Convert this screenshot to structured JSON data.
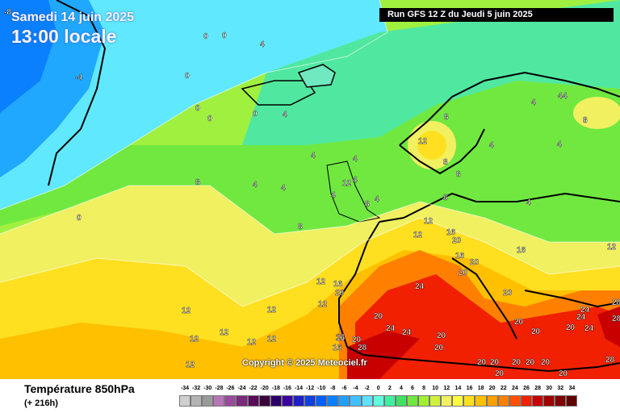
{
  "header": {
    "date": "Samedi 14 juin 2025",
    "local_time": "13:00 locale",
    "run_info": "Run GFS 12 Z du Jeudi 5 juin 2025"
  },
  "copyright": "Copyright © 2025 Meteociel.fr",
  "footer": {
    "parameter": "Température 850hPa",
    "lead_time": "(+ 216h)"
  },
  "legend": {
    "labels": [
      "-34",
      "-32",
      "-30",
      "-28",
      "-26",
      "-24",
      "-22",
      "-20",
      "-18",
      "-16",
      "-14",
      "-12",
      "-10",
      "-8",
      "-6",
      "-4",
      "-2",
      "0",
      "2",
      "4",
      "6",
      "8",
      "10",
      "12",
      "14",
      "16",
      "18",
      "20",
      "22",
      "24",
      "26",
      "28",
      "30",
      "32",
      "34"
    ],
    "colors": [
      "#cfcfcf",
      "#b3b3b3",
      "#9a9a9a",
      "#b874b8",
      "#9a4a9a",
      "#7a2a7a",
      "#5a0a5a",
      "#3a003a",
      "#2a0068",
      "#3a00a0",
      "#2020c8",
      "#1040e0",
      "#0060ff",
      "#0a80ff",
      "#20a0ff",
      "#40c0ff",
      "#60e0ff",
      "#60ffe0",
      "#40f0a0",
      "#40e060",
      "#70e840",
      "#a0f030",
      "#d0f040",
      "#f0f060",
      "#ffff40",
      "#ffe020",
      "#ffc000",
      "#ffa000",
      "#ff8000",
      "#ff5000",
      "#f02000",
      "#c80000",
      "#a00000",
      "#800000",
      "#600000"
    ]
  },
  "map_labels": [
    {
      "text": "-8"
    },
    {
      "text": "0"
    },
    {
      "text": "-4"
    },
    {
      "text": "0"
    },
    {
      "text": "0"
    },
    {
      "text": "4"
    },
    {
      "text": "0"
    },
    {
      "text": "4"
    },
    {
      "text": "0"
    },
    {
      "text": "0"
    },
    {
      "text": "0"
    },
    {
      "text": "0"
    },
    {
      "text": "4"
    },
    {
      "text": "4"
    },
    {
      "text": "4"
    },
    {
      "text": "4"
    },
    {
      "text": "8"
    },
    {
      "text": "8"
    },
    {
      "text": "4"
    },
    {
      "text": "12"
    },
    {
      "text": "8"
    },
    {
      "text": "4"
    },
    {
      "text": "4"
    },
    {
      "text": "4"
    },
    {
      "text": "4"
    },
    {
      "text": "4"
    },
    {
      "text": "4"
    },
    {
      "text": "8"
    },
    {
      "text": "12"
    },
    {
      "text": "8"
    },
    {
      "text": "8"
    },
    {
      "text": "8"
    },
    {
      "text": "4"
    },
    {
      "text": "4"
    },
    {
      "text": "8"
    },
    {
      "text": "12"
    },
    {
      "text": "12"
    },
    {
      "text": "16"
    },
    {
      "text": "20"
    },
    {
      "text": "16"
    },
    {
      "text": "20"
    },
    {
      "text": "16"
    },
    {
      "text": "12"
    },
    {
      "text": "12"
    },
    {
      "text": "16"
    },
    {
      "text": "20"
    },
    {
      "text": "16"
    },
    {
      "text": "24"
    },
    {
      "text": "20"
    },
    {
      "text": "20"
    },
    {
      "text": "12"
    },
    {
      "text": "12"
    },
    {
      "text": "12"
    },
    {
      "text": "12"
    },
    {
      "text": "12"
    },
    {
      "text": "12"
    },
    {
      "text": "12"
    },
    {
      "text": "12"
    },
    {
      "text": "20"
    },
    {
      "text": "24"
    },
    {
      "text": "24"
    },
    {
      "text": "16"
    },
    {
      "text": "20"
    },
    {
      "text": "28"
    },
    {
      "text": "16"
    },
    {
      "text": "20"
    },
    {
      "text": "20"
    },
    {
      "text": "20"
    },
    {
      "text": "20"
    },
    {
      "text": "20"
    },
    {
      "text": "20"
    },
    {
      "text": "24"
    },
    {
      "text": "20"
    },
    {
      "text": "24"
    },
    {
      "text": "28"
    },
    {
      "text": "28"
    },
    {
      "text": "20"
    },
    {
      "text": "20"
    },
    {
      "text": "20"
    },
    {
      "text": "28"
    },
    {
      "text": "20"
    },
    {
      "text": "20"
    },
    {
      "text": "24"
    }
  ]
}
